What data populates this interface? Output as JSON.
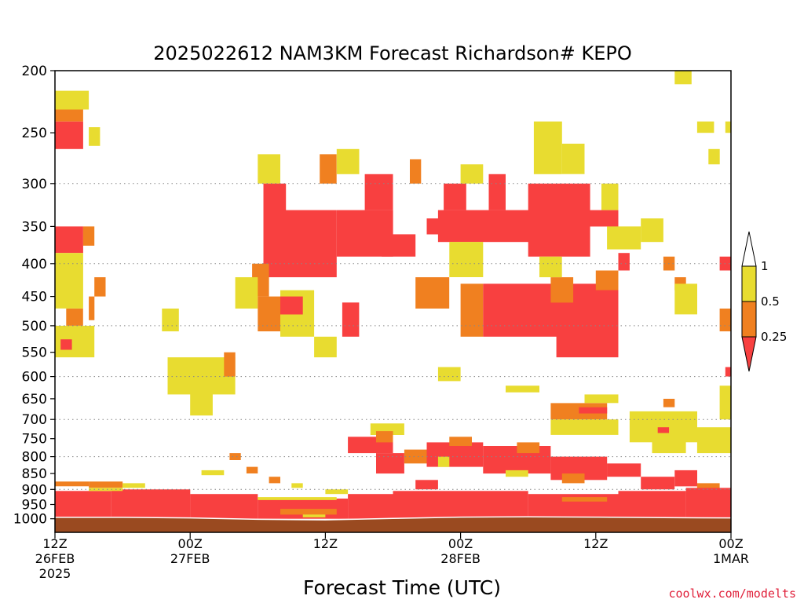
{
  "chart_data": {
    "type": "heatmap",
    "title": "2025022612 NAM3KM Forecast Richardson# KEPO",
    "xlabel": "Forecast Time (UTC)",
    "ylabel": "",
    "credit": "coolwx.com/modelts",
    "y_axis": {
      "scale": "pressure (inverted, log)",
      "range": [
        1050,
        200
      ],
      "ticks": [
        200,
        250,
        300,
        350,
        400,
        450,
        500,
        550,
        600,
        650,
        700,
        750,
        800,
        850,
        900,
        950,
        1000
      ],
      "tick_labels": [
        "200",
        "250",
        "300",
        "350",
        "400",
        "450",
        "500",
        "550",
        "600",
        "650",
        "700",
        "750",
        "800",
        "850",
        "900",
        "950",
        "1000"
      ],
      "gridlines": [
        300,
        400,
        500,
        600,
        700,
        800,
        900
      ]
    },
    "x_axis": {
      "range_hours": [
        0,
        60
      ],
      "ticks": [
        {
          "hour": 0,
          "lines": [
            "12Z",
            "26FEB",
            "2025"
          ]
        },
        {
          "hour": 12,
          "lines": [
            "00Z",
            "27FEB"
          ]
        },
        {
          "hour": 24,
          "lines": [
            "12Z"
          ]
        },
        {
          "hour": 36,
          "lines": [
            "00Z",
            "28FEB"
          ]
        },
        {
          "hour": 48,
          "lines": [
            "12Z"
          ]
        },
        {
          "hour": 60,
          "lines": [
            "00Z",
            "1MAR"
          ]
        }
      ]
    },
    "colorbar": {
      "labels": [
        "1",
        "0.5",
        "0.25"
      ],
      "categories": [
        {
          "range": "< 0.25",
          "color": "#f84040"
        },
        {
          "range": "0.25 - 0.5",
          "color": "#f08020"
        },
        {
          "range": "0.5 - 1",
          "color": "#e8dc30"
        }
      ]
    },
    "colors": {
      "low": "#f84040",
      "mid": "#f08020",
      "high": "#e8dc30",
      "ground": "#9a4a20"
    },
    "regions": [
      {
        "cat": "low",
        "t": [
          0,
          2.5
        ],
        "p": [
          240,
          265
        ]
      },
      {
        "cat": "mid",
        "t": [
          0,
          2.5
        ],
        "p": [
          225,
          240
        ]
      },
      {
        "cat": "high",
        "t": [
          0,
          3
        ],
        "p": [
          215,
          230
        ]
      },
      {
        "cat": "high",
        "t": [
          3,
          4
        ],
        "p": [
          245,
          262
        ]
      },
      {
        "cat": "low",
        "t": [
          0,
          2.5
        ],
        "p": [
          350,
          385
        ]
      },
      {
        "cat": "mid",
        "t": [
          2.5,
          3.5
        ],
        "p": [
          350,
          375
        ]
      },
      {
        "cat": "high",
        "t": [
          0,
          2.5
        ],
        "p": [
          385,
          470
        ]
      },
      {
        "cat": "mid",
        "t": [
          1,
          2.5
        ],
        "p": [
          470,
          500
        ]
      },
      {
        "cat": "high",
        "t": [
          0,
          3.5
        ],
        "p": [
          500,
          560
        ]
      },
      {
        "cat": "low",
        "t": [
          0.5,
          1.5
        ],
        "p": [
          525,
          545
        ]
      },
      {
        "cat": "mid",
        "t": [
          3.5,
          4.5
        ],
        "p": [
          420,
          450
        ]
      },
      {
        "cat": "mid",
        "t": [
          3,
          3.5
        ],
        "p": [
          450,
          490
        ]
      },
      {
        "cat": "high",
        "t": [
          10,
          16
        ],
        "p": [
          560,
          640
        ]
      },
      {
        "cat": "mid",
        "t": [
          15,
          16
        ],
        "p": [
          550,
          600
        ]
      },
      {
        "cat": "high",
        "t": [
          12,
          14
        ],
        "p": [
          630,
          690
        ]
      },
      {
        "cat": "high",
        "t": [
          9.5,
          11
        ],
        "p": [
          470,
          510
        ]
      },
      {
        "cat": "high",
        "t": [
          18,
          20
        ],
        "p": [
          270,
          300
        ]
      },
      {
        "cat": "low",
        "t": [
          18.5,
          20.5
        ],
        "p": [
          300,
          340
        ]
      },
      {
        "cat": "low",
        "t": [
          18.5,
          25
        ],
        "p": [
          330,
          420
        ]
      },
      {
        "cat": "mid",
        "t": [
          17.5,
          19
        ],
        "p": [
          400,
          450
        ]
      },
      {
        "cat": "high",
        "t": [
          16,
          18
        ],
        "p": [
          420,
          470
        ]
      },
      {
        "cat": "mid",
        "t": [
          18,
          20
        ],
        "p": [
          450,
          510
        ]
      },
      {
        "cat": "high",
        "t": [
          20,
          23
        ],
        "p": [
          440,
          520
        ]
      },
      {
        "cat": "low",
        "t": [
          20,
          22
        ],
        "p": [
          450,
          480
        ]
      },
      {
        "cat": "mid",
        "t": [
          23.5,
          25
        ],
        "p": [
          270,
          300
        ]
      },
      {
        "cat": "high",
        "t": [
          25,
          27
        ],
        "p": [
          265,
          290
        ]
      },
      {
        "cat": "low",
        "t": [
          25,
          30
        ],
        "p": [
          330,
          390
        ]
      },
      {
        "cat": "low",
        "t": [
          27.5,
          30
        ],
        "p": [
          290,
          330
        ]
      },
      {
        "cat": "low",
        "t": [
          25.5,
          27
        ],
        "p": [
          460,
          520
        ]
      },
      {
        "cat": "high",
        "t": [
          23,
          25
        ],
        "p": [
          520,
          560
        ]
      },
      {
        "cat": "low",
        "t": [
          29,
          32
        ],
        "p": [
          360,
          390
        ]
      },
      {
        "cat": "mid",
        "t": [
          31.5,
          32.5
        ],
        "p": [
          275,
          300
        ]
      },
      {
        "cat": "mid",
        "t": [
          32,
          35
        ],
        "p": [
          420,
          470
        ]
      },
      {
        "cat": "low",
        "t": [
          33,
          35
        ],
        "p": [
          340,
          360
        ]
      },
      {
        "cat": "low",
        "t": [
          34,
          43
        ],
        "p": [
          330,
          370
        ]
      },
      {
        "cat": "low",
        "t": [
          34.5,
          36.5
        ],
        "p": [
          300,
          330
        ]
      },
      {
        "cat": "high",
        "t": [
          36,
          38
        ],
        "p": [
          280,
          300
        ]
      },
      {
        "cat": "high",
        "t": [
          35,
          38
        ],
        "p": [
          370,
          420
        ]
      },
      {
        "cat": "mid",
        "t": [
          36,
          38
        ],
        "p": [
          430,
          520
        ]
      },
      {
        "cat": "low",
        "t": [
          38,
          50
        ],
        "p": [
          430,
          520
        ]
      },
      {
        "cat": "low",
        "t": [
          38.5,
          40
        ],
        "p": [
          290,
          330
        ]
      },
      {
        "cat": "low",
        "t": [
          42,
          47.5
        ],
        "p": [
          300,
          390
        ]
      },
      {
        "cat": "low",
        "t": [
          47,
          50
        ],
        "p": [
          330,
          350
        ]
      },
      {
        "cat": "mid",
        "t": [
          44,
          46
        ],
        "p": [
          420,
          460
        ]
      },
      {
        "cat": "high",
        "t": [
          43,
          45
        ],
        "p": [
          390,
          420
        ]
      },
      {
        "cat": "high",
        "t": [
          42.5,
          45
        ],
        "p": [
          240,
          290
        ]
      },
      {
        "cat": "high",
        "t": [
          45,
          47
        ],
        "p": [
          260,
          290
        ]
      },
      {
        "cat": "low",
        "t": [
          44.5,
          50
        ],
        "p": [
          500,
          560
        ]
      },
      {
        "cat": "mid",
        "t": [
          48,
          50
        ],
        "p": [
          410,
          440
        ]
      },
      {
        "cat": "high",
        "t": [
          48.5,
          50
        ],
        "p": [
          300,
          330
        ]
      },
      {
        "cat": "high",
        "t": [
          49,
          52
        ],
        "p": [
          350,
          380
        ]
      },
      {
        "cat": "low",
        "t": [
          50,
          51
        ],
        "p": [
          385,
          410
        ]
      },
      {
        "cat": "high",
        "t": [
          52,
          54
        ],
        "p": [
          340,
          370
        ]
      },
      {
        "cat": "mid",
        "t": [
          54,
          55
        ],
        "p": [
          390,
          410
        ]
      },
      {
        "cat": "mid",
        "t": [
          55,
          56
        ],
        "p": [
          420,
          440
        ]
      },
      {
        "cat": "high",
        "t": [
          55,
          57
        ],
        "p": [
          430,
          480
        ]
      },
      {
        "cat": "high",
        "t": [
          55,
          56.5
        ],
        "p": [
          200,
          210
        ]
      },
      {
        "cat": "high",
        "t": [
          57,
          58.5
        ],
        "p": [
          240,
          250
        ]
      },
      {
        "cat": "high",
        "t": [
          58,
          59
        ],
        "p": [
          265,
          280
        ]
      },
      {
        "cat": "low",
        "t": [
          59,
          60
        ],
        "p": [
          390,
          410
        ]
      },
      {
        "cat": "high",
        "t": [
          59.5,
          60
        ],
        "p": [
          240,
          250
        ]
      },
      {
        "cat": "mid",
        "t": [
          59,
          60
        ],
        "p": [
          470,
          510
        ]
      },
      {
        "cat": "high",
        "t": [
          59,
          60
        ],
        "p": [
          620,
          700
        ]
      },
      {
        "cat": "low",
        "t": [
          59.5,
          60
        ],
        "p": [
          580,
          600
        ]
      },
      {
        "cat": "high",
        "t": [
          34,
          36
        ],
        "p": [
          580,
          610
        ]
      },
      {
        "cat": "high",
        "t": [
          40,
          43
        ],
        "p": [
          620,
          635
        ]
      },
      {
        "cat": "high",
        "t": [
          47,
          50
        ],
        "p": [
          640,
          660
        ]
      },
      {
        "cat": "mid",
        "t": [
          44,
          49
        ],
        "p": [
          660,
          700
        ]
      },
      {
        "cat": "low",
        "t": [
          46.5,
          49
        ],
        "p": [
          670,
          685
        ]
      },
      {
        "cat": "high",
        "t": [
          44,
          50
        ],
        "p": [
          700,
          740
        ]
      },
      {
        "cat": "high",
        "t": [
          51,
          57
        ],
        "p": [
          680,
          760
        ]
      },
      {
        "cat": "mid",
        "t": [
          54,
          55
        ],
        "p": [
          650,
          670
        ]
      },
      {
        "cat": "low",
        "t": [
          53.5,
          54.5
        ],
        "p": [
          720,
          735
        ]
      },
      {
        "cat": "high",
        "t": [
          57,
          60
        ],
        "p": [
          720,
          790
        ]
      },
      {
        "cat": "high",
        "t": [
          28,
          31
        ],
        "p": [
          710,
          740
        ]
      },
      {
        "cat": "low",
        "t": [
          26,
          30
        ],
        "p": [
          745,
          790
        ]
      },
      {
        "cat": "mid",
        "t": [
          28.5,
          30
        ],
        "p": [
          730,
          760
        ]
      },
      {
        "cat": "low",
        "t": [
          28.5,
          31
        ],
        "p": [
          790,
          850
        ]
      },
      {
        "cat": "mid",
        "t": [
          31,
          33
        ],
        "p": [
          780,
          820
        ]
      },
      {
        "cat": "low",
        "t": [
          33,
          38
        ],
        "p": [
          760,
          830
        ]
      },
      {
        "cat": "mid",
        "t": [
          35,
          37
        ],
        "p": [
          745,
          770
        ]
      },
      {
        "cat": "high",
        "t": [
          34,
          35
        ],
        "p": [
          800,
          830
        ]
      },
      {
        "cat": "low",
        "t": [
          32,
          34
        ],
        "p": [
          870,
          900
        ]
      },
      {
        "cat": "low",
        "t": [
          38,
          44
        ],
        "p": [
          770,
          850
        ]
      },
      {
        "cat": "mid",
        "t": [
          41,
          43
        ],
        "p": [
          760,
          790
        ]
      },
      {
        "cat": "high",
        "t": [
          40,
          42
        ],
        "p": [
          840,
          860
        ]
      },
      {
        "cat": "low",
        "t": [
          44,
          49
        ],
        "p": [
          800,
          870
        ]
      },
      {
        "cat": "mid",
        "t": [
          45,
          47
        ],
        "p": [
          850,
          880
        ]
      },
      {
        "cat": "low",
        "t": [
          49,
          52
        ],
        "p": [
          820,
          860
        ]
      },
      {
        "cat": "high",
        "t": [
          53,
          56
        ],
        "p": [
          750,
          790
        ]
      },
      {
        "cat": "low",
        "t": [
          52,
          55
        ],
        "p": [
          860,
          900
        ]
      },
      {
        "cat": "low",
        "t": [
          55,
          57
        ],
        "p": [
          840,
          890
        ]
      },
      {
        "cat": "mid",
        "t": [
          57,
          59
        ],
        "p": [
          880,
          910
        ]
      },
      {
        "cat": "mid",
        "t": [
          3,
          6
        ],
        "p": [
          875,
          895
        ]
      },
      {
        "cat": "high",
        "t": [
          6,
          8
        ],
        "p": [
          880,
          895
        ]
      },
      {
        "cat": "high",
        "t": [
          13,
          15
        ],
        "p": [
          840,
          855
        ]
      },
      {
        "cat": "mid",
        "t": [
          15.5,
          16.5
        ],
        "p": [
          790,
          810
        ]
      },
      {
        "cat": "mid",
        "t": [
          17,
          18
        ],
        "p": [
          830,
          850
        ]
      },
      {
        "cat": "mid",
        "t": [
          19,
          20
        ],
        "p": [
          860,
          880
        ]
      },
      {
        "cat": "high",
        "t": [
          21,
          22
        ],
        "p": [
          880,
          895
        ]
      },
      {
        "cat": "high",
        "t": [
          24,
          26
        ],
        "p": [
          900,
          915
        ]
      },
      {
        "cat": "low",
        "t": [
          0,
          5
        ],
        "p": [
          905,
          1000
        ]
      },
      {
        "cat": "low",
        "t": [
          5,
          12
        ],
        "p": [
          900,
          1000
        ]
      },
      {
        "cat": "low",
        "t": [
          12,
          18
        ],
        "p": [
          915,
          1000
        ]
      },
      {
        "cat": "low",
        "t": [
          18,
          26
        ],
        "p": [
          930,
          1000
        ]
      },
      {
        "cat": "low",
        "t": [
          26,
          30
        ],
        "p": [
          915,
          1000
        ]
      },
      {
        "cat": "low",
        "t": [
          30,
          42
        ],
        "p": [
          905,
          1000
        ]
      },
      {
        "cat": "low",
        "t": [
          42,
          50
        ],
        "p": [
          915,
          1000
        ]
      },
      {
        "cat": "low",
        "t": [
          50,
          56
        ],
        "p": [
          905,
          1000
        ]
      },
      {
        "cat": "low",
        "t": [
          56,
          60
        ],
        "p": [
          895,
          1000
        ]
      },
      {
        "cat": "mid",
        "t": [
          0,
          3
        ],
        "p": [
          875,
          890
        ]
      },
      {
        "cat": "high",
        "t": [
          3,
          6
        ],
        "p": [
          895,
          905
        ]
      },
      {
        "cat": "high",
        "t": [
          18,
          25
        ],
        "p": [
          925,
          935
        ]
      },
      {
        "cat": "mid",
        "t": [
          20,
          25
        ],
        "p": [
          965,
          985
        ]
      },
      {
        "cat": "high",
        "t": [
          22,
          24
        ],
        "p": [
          985,
          995
        ]
      },
      {
        "cat": "mid",
        "t": [
          45,
          49
        ],
        "p": [
          925,
          940
        ]
      }
    ],
    "ground": [
      [
        0,
        995
      ],
      [
        6,
        995
      ],
      [
        12,
        997
      ],
      [
        18,
        1002
      ],
      [
        24,
        1004
      ],
      [
        30,
        999
      ],
      [
        36,
        994
      ],
      [
        42,
        993
      ],
      [
        48,
        994
      ],
      [
        54,
        996
      ],
      [
        60,
        997
      ]
    ]
  }
}
